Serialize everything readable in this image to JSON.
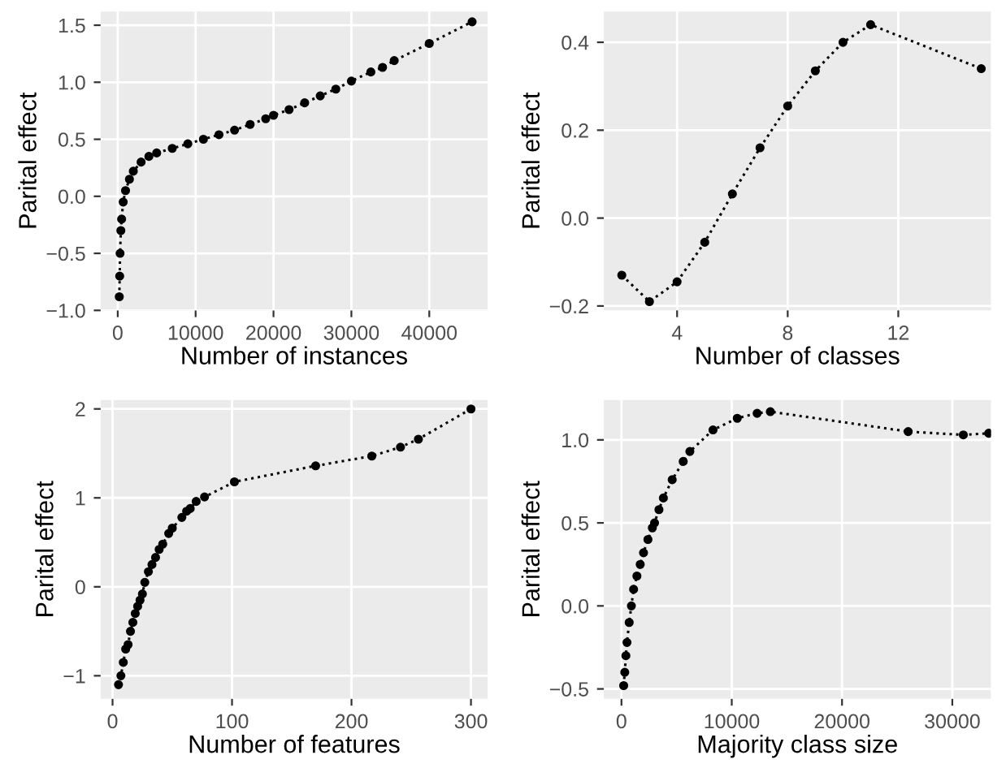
{
  "chart_data": [
    {
      "type": "line",
      "xlabel": "Number of instances",
      "ylabel": "Parital effect",
      "marker": "circle",
      "line_style": "dotted",
      "grid": true,
      "xlim": [
        -2200,
        47500
      ],
      "ylim": [
        -1.0,
        1.62
      ],
      "xticks": [
        0,
        10000,
        20000,
        30000,
        40000
      ],
      "yticks": [
        {
          "value": -1.0,
          "label": "−1.0"
        },
        {
          "value": -0.5,
          "label": "−0.5"
        },
        {
          "value": 0.0,
          "label": "0.0"
        },
        0.5,
        {
          "value": 1.0,
          "label": "1.0"
        },
        1.5
      ],
      "series": [
        {
          "color": "#000000",
          "x": [
            200,
            250,
            300,
            400,
            500,
            700,
            1000,
            1500,
            2000,
            3000,
            4000,
            5000,
            7000,
            9000,
            11000,
            13000,
            15000,
            17000,
            19000,
            20000,
            22000,
            24000,
            26000,
            28000,
            30000,
            32500,
            34000,
            35500,
            40000,
            45500
          ],
          "values": [
            -0.88,
            -0.7,
            -0.5,
            -0.3,
            -0.2,
            -0.05,
            0.05,
            0.15,
            0.22,
            0.3,
            0.35,
            0.38,
            0.42,
            0.46,
            0.5,
            0.54,
            0.58,
            0.63,
            0.68,
            0.71,
            0.76,
            0.82,
            0.88,
            0.94,
            1.01,
            1.09,
            1.13,
            1.19,
            1.34,
            1.53
          ]
        }
      ]
    },
    {
      "type": "line",
      "xlabel": "Number of classes",
      "ylabel": "Parital effect",
      "marker": "circle",
      "line_style": "dotted",
      "grid": true,
      "xlim": [
        1.35,
        15.35
      ],
      "ylim": [
        -0.21,
        0.47
      ],
      "xticks": [
        4,
        8,
        12
      ],
      "yticks": [
        {
          "value": -0.2,
          "label": "−0.2"
        },
        {
          "value": 0.0,
          "label": "0.0"
        },
        0.2,
        0.4
      ],
      "series": [
        {
          "color": "#000000",
          "x": [
            2,
            3,
            4,
            5,
            6,
            7,
            8,
            9,
            10,
            11,
            15
          ],
          "values": [
            -0.13,
            -0.19,
            -0.145,
            -0.055,
            0.055,
            0.16,
            0.255,
            0.335,
            0.4,
            0.44,
            0.34
          ]
        }
      ]
    },
    {
      "type": "line",
      "xlabel": "Number of features",
      "ylabel": "Parital effect",
      "marker": "circle",
      "line_style": "dotted",
      "grid": true,
      "xlim": [
        -10,
        314
      ],
      "ylim": [
        -1.26,
        2.1
      ],
      "xticks": [
        0,
        100,
        200,
        300
      ],
      "yticks": [
        {
          "value": -1,
          "label": "−1"
        },
        0,
        1,
        2
      ],
      "series": [
        {
          "color": "#000000",
          "x": [
            5,
            7,
            9,
            11,
            13,
            15,
            17,
            19,
            21,
            23,
            25,
            27,
            30,
            33,
            36,
            39,
            42,
            47,
            50,
            58,
            62,
            65,
            70,
            77,
            102,
            170,
            217,
            241,
            256,
            300
          ],
          "values": [
            -1.1,
            -1.0,
            -0.85,
            -0.7,
            -0.65,
            -0.5,
            -0.4,
            -0.3,
            -0.22,
            -0.15,
            -0.08,
            0.05,
            0.17,
            0.25,
            0.33,
            0.42,
            0.48,
            0.6,
            0.66,
            0.78,
            0.85,
            0.88,
            0.96,
            1.01,
            1.18,
            1.36,
            1.47,
            1.57,
            1.66,
            2.0
          ]
        }
      ]
    },
    {
      "type": "line",
      "xlabel": "Majority class size",
      "ylabel": "Parital effect",
      "marker": "circle",
      "line_style": "dotted",
      "grid": true,
      "xlim": [
        -1600,
        33500
      ],
      "ylim": [
        -0.56,
        1.24
      ],
      "xticks": [
        0,
        10000,
        20000,
        30000
      ],
      "yticks": [
        {
          "value": -0.5,
          "label": "−0.5"
        },
        {
          "value": 0.0,
          "label": "0.0"
        },
        0.5,
        {
          "value": 1.0,
          "label": "1.0"
        }
      ],
      "series": [
        {
          "color": "#000000",
          "x": [
            200,
            300,
            400,
            500,
            700,
            900,
            1100,
            1400,
            1700,
            2000,
            2400,
            2800,
            3000,
            3400,
            3800,
            4600,
            5600,
            6200,
            8300,
            10500,
            12300,
            13500,
            26000,
            31000,
            33300
          ],
          "values": [
            -0.48,
            -0.4,
            -0.3,
            -0.22,
            -0.1,
            0.0,
            0.1,
            0.18,
            0.25,
            0.32,
            0.4,
            0.47,
            0.5,
            0.58,
            0.65,
            0.76,
            0.87,
            0.93,
            1.06,
            1.13,
            1.16,
            1.17,
            1.05,
            1.03,
            1.04
          ]
        }
      ]
    }
  ]
}
